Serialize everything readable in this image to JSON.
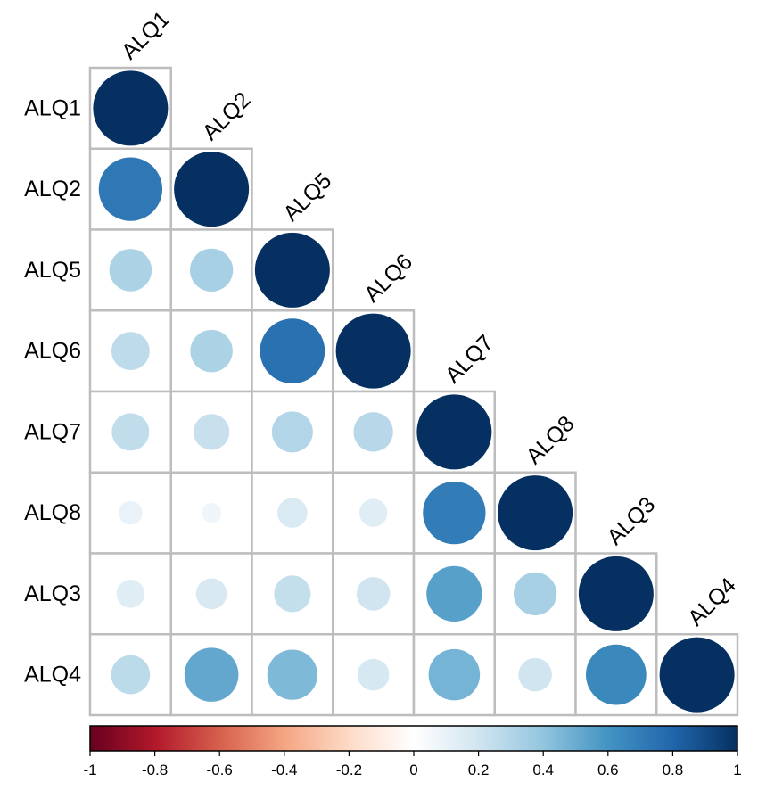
{
  "chart_data": {
    "type": "heatmap",
    "subtype": "correlation-lower-triangle-circles",
    "variables": [
      "ALQ1",
      "ALQ2",
      "ALQ5",
      "ALQ6",
      "ALQ7",
      "ALQ8",
      "ALQ3",
      "ALQ4"
    ],
    "matrix": [
      [
        1.0
      ],
      [
        0.72,
        1.0
      ],
      [
        0.32,
        0.33,
        1.0
      ],
      [
        0.26,
        0.32,
        0.75,
        1.0
      ],
      [
        0.25,
        0.23,
        0.3,
        0.28,
        1.0
      ],
      [
        0.1,
        0.07,
        0.16,
        0.14,
        0.7,
        1.0
      ],
      [
        0.14,
        0.17,
        0.24,
        0.2,
        0.55,
        0.33,
        1.0
      ],
      [
        0.27,
        0.52,
        0.45,
        0.18,
        0.47,
        0.2,
        0.65,
        1.0
      ]
    ],
    "color_scale": {
      "range": [
        -1,
        1
      ],
      "ticks": [
        "-1",
        "-0.8",
        "-0.6",
        "-0.4",
        "-0.2",
        "0",
        "0.2",
        "0.4",
        "0.6",
        "0.8",
        "1"
      ],
      "colors": [
        "#67001f",
        "#b2182b",
        "#d6604d",
        "#f4a582",
        "#fddbc7",
        "#ffffff",
        "#d1e5f0",
        "#92c5de",
        "#4393c3",
        "#2166ac",
        "#053061"
      ]
    },
    "legend_placement": "bottom",
    "grid": true
  }
}
